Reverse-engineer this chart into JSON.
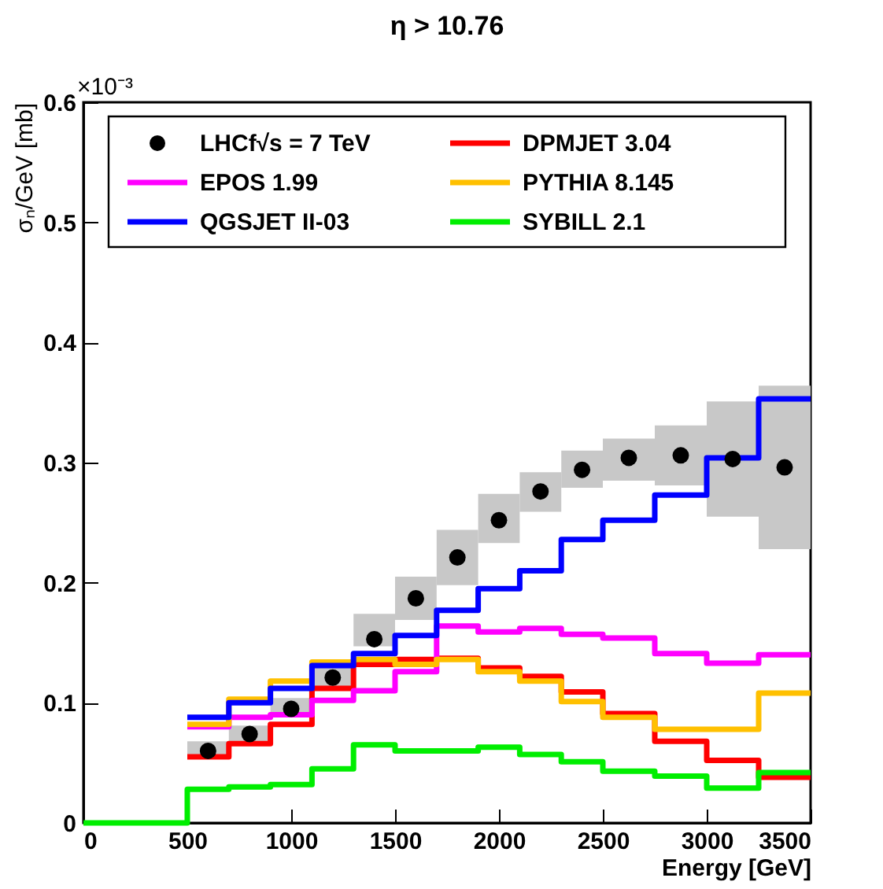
{
  "chart_data": {
    "type": "histogram",
    "title": "η > 10.76",
    "xlabel": "Energy [GeV]",
    "ylabel": "σₙ/GeV [mb]",
    "annotations": [
      "×10⁻³"
    ],
    "bins": [
      0,
      500,
      700,
      900,
      1100,
      1300,
      1500,
      1700,
      1900,
      2100,
      2300,
      2500,
      2750,
      3000,
      3250,
      3500
    ],
    "series": [
      {
        "name": "LHCf√s = 7 TeV",
        "type": "scatter",
        "color": "#000000",
        "x": [
          600,
          800,
          1000,
          1200,
          1400,
          1600,
          1800,
          2000,
          2200,
          2400,
          2625,
          2875,
          3125,
          3375
        ],
        "values": [
          0.06,
          0.074,
          0.095,
          0.121,
          0.153,
          0.187,
          0.221,
          0.252,
          0.276,
          0.294,
          0.304,
          0.306,
          0.303,
          0.296
        ],
        "errors": [
          [
            0.055,
            0.068
          ],
          [
            0.068,
            0.081
          ],
          [
            0.088,
            0.104
          ],
          [
            0.112,
            0.132
          ],
          [
            0.147,
            0.174
          ],
          [
            0.169,
            0.205
          ],
          [
            0.198,
            0.244
          ],
          [
            0.233,
            0.274
          ],
          [
            0.259,
            0.292
          ],
          [
            0.279,
            0.31
          ],
          [
            0.285,
            0.32
          ],
          [
            0.281,
            0.331
          ],
          [
            0.255,
            0.351
          ],
          [
            0.228,
            0.364
          ]
        ]
      },
      {
        "name": "DPMJET 3.04",
        "color": "#ff0000",
        "bins": [
          500,
          700,
          900,
          1100,
          1300,
          1500,
          1700,
          1900,
          2100,
          2300,
          2500,
          2750,
          3000,
          3250,
          3500
        ],
        "values": [
          0.055,
          0.066,
          0.082,
          0.112,
          0.132,
          0.136,
          0.137,
          0.129,
          0.122,
          0.109,
          0.091,
          0.068,
          0.052,
          0.038
        ]
      },
      {
        "name": "EPOS 1.99",
        "color": "#ff00ff",
        "bins": [
          500,
          700,
          900,
          1100,
          1300,
          1500,
          1700,
          1900,
          2100,
          2300,
          2500,
          2750,
          3000,
          3250,
          3500
        ],
        "values": [
          0.08,
          0.088,
          0.09,
          0.102,
          0.11,
          0.126,
          0.164,
          0.159,
          0.162,
          0.157,
          0.154,
          0.141,
          0.133,
          0.14
        ]
      },
      {
        "name": "PYTHIA 8.145",
        "color": "#ffc000",
        "bins": [
          500,
          700,
          900,
          1100,
          1300,
          1500,
          1700,
          1900,
          2100,
          2300,
          2500,
          2750,
          3000,
          3250,
          3500
        ],
        "values": [
          0.082,
          0.103,
          0.118,
          0.134,
          0.136,
          0.132,
          0.136,
          0.126,
          0.118,
          0.101,
          0.088,
          0.078,
          0.078,
          0.108
        ]
      },
      {
        "name": "QGSJET II-03",
        "color": "#0000ff",
        "bins": [
          500,
          700,
          900,
          1100,
          1300,
          1500,
          1700,
          1900,
          2100,
          2300,
          2500,
          2750,
          3000,
          3250,
          3500
        ],
        "values": [
          0.088,
          0.1,
          0.112,
          0.131,
          0.141,
          0.156,
          0.177,
          0.195,
          0.21,
          0.236,
          0.252,
          0.273,
          0.304,
          0.353
        ]
      },
      {
        "name": "SYBILL 2.1",
        "color": "#00ee00",
        "values": [
          0,
          0.028,
          0.03,
          0.032,
          0.045,
          0.065,
          0.06,
          0.06,
          0.063,
          0.057,
          0.051,
          0.043,
          0.039,
          0.029,
          0.042
        ]
      }
    ],
    "marker": "circle",
    "xlim": [
      0,
      3500
    ],
    "xticks": [
      0,
      500,
      1000,
      1500,
      2000,
      2500,
      3000,
      3500
    ],
    "ylim": [
      0,
      0.6
    ],
    "yticks": [
      0,
      0.1,
      0.2,
      0.3,
      0.4,
      0.5,
      0.6
    ],
    "grid": false,
    "legend": "top"
  }
}
